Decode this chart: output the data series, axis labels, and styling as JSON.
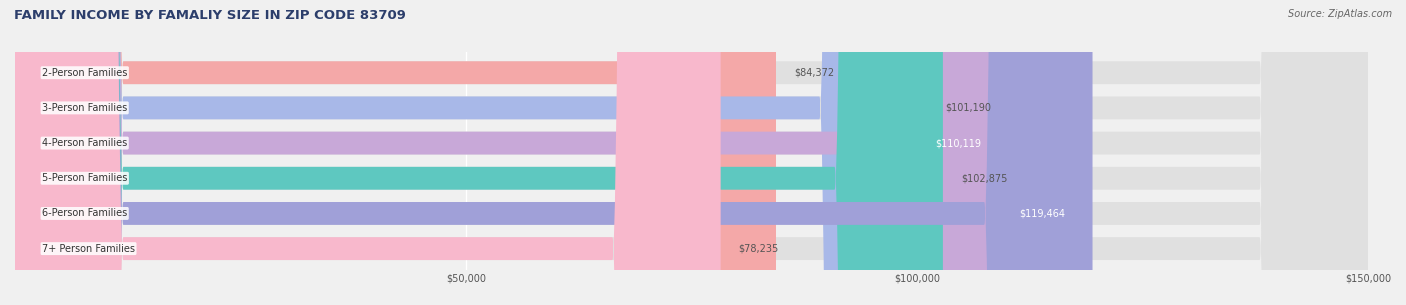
{
  "title": "FAMILY INCOME BY FAMALIY SIZE IN ZIP CODE 83709",
  "source": "Source: ZipAtlas.com",
  "categories": [
    "2-Person Families",
    "3-Person Families",
    "4-Person Families",
    "5-Person Families",
    "6-Person Families",
    "7+ Person Families"
  ],
  "values": [
    84372,
    101190,
    110119,
    102875,
    119464,
    78235
  ],
  "bar_colors": [
    "#F4A8A8",
    "#A8B8E8",
    "#C8A8D8",
    "#5EC8C0",
    "#A0A0D8",
    "#F8B8CC"
  ],
  "value_labels": [
    "$84,372",
    "$101,190",
    "$110,119",
    "$102,875",
    "$119,464",
    "$78,235"
  ],
  "label_inside": [
    false,
    false,
    true,
    false,
    true,
    false
  ],
  "xlim": [
    0,
    150000
  ],
  "xticks": [
    0,
    50000,
    100000,
    150000
  ],
  "xtick_labels": [
    "$50,000",
    "$100,000",
    "$150,000"
  ],
  "background_color": "#f0f0f0",
  "bar_bg_color": "#e8e8e8",
  "title_color": "#2c3e6b",
  "source_color": "#666666",
  "label_color": "#555555",
  "label_inside_color": "#ffffff",
  "category_label_color": "#333333",
  "bar_height": 0.65,
  "figsize": [
    14.06,
    3.05
  ],
  "dpi": 100
}
